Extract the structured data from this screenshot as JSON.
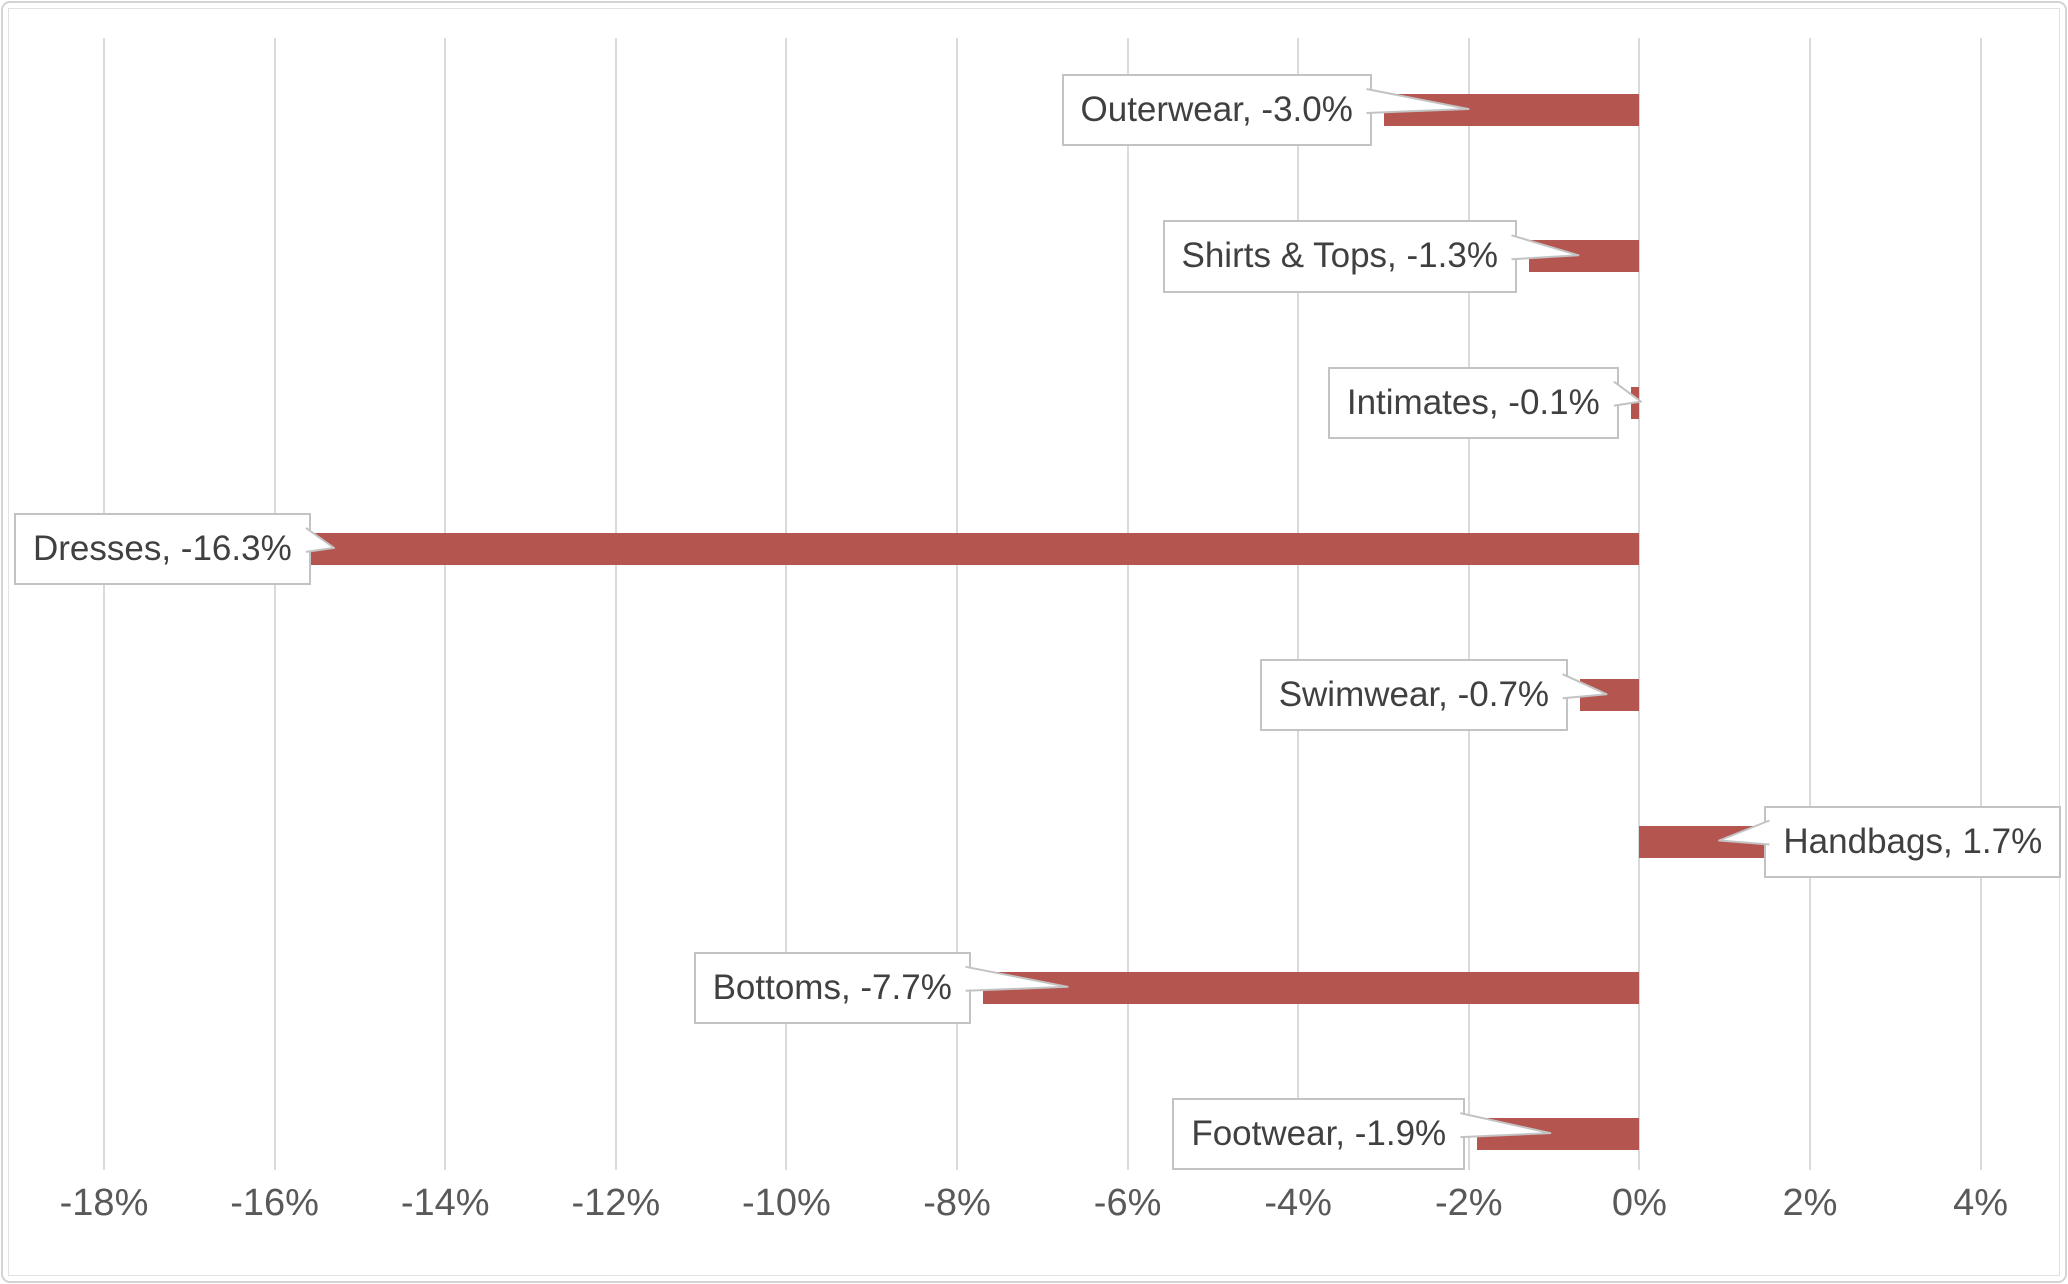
{
  "chart_data": {
    "type": "bar",
    "orientation": "horizontal",
    "title": "",
    "categories": [
      "Outerwear",
      "Shirts & Tops",
      "Intimates",
      "Dresses",
      "Swimwear",
      "Handbags",
      "Bottoms",
      "Footwear"
    ],
    "values": [
      -3.0,
      -1.3,
      -0.1,
      -16.3,
      -0.7,
      1.7,
      -7.7,
      -1.9
    ],
    "value_unit": "%",
    "data_labels": [
      "Outerwear, -3.0%",
      "Shirts & Tops, -1.3%",
      "Intimates, -0.1%",
      "Dresses, -16.3%",
      "Swimwear, -0.7%",
      "Handbags, 1.7%",
      "Bottoms, -7.7%",
      "Footwear, -1.9%"
    ],
    "x_ticks": [
      "-18%",
      "-16%",
      "-14%",
      "-12%",
      "-10%",
      "-8%",
      "-6%",
      "-4%",
      "-2%",
      "0%",
      "2%",
      "4%"
    ],
    "x_tick_values": [
      -18,
      -16,
      -14,
      -12,
      -10,
      -8,
      -6,
      -4,
      -2,
      0,
      2,
      4
    ],
    "xlim": [
      -18.8,
      5.0
    ],
    "grid": true,
    "legend": "none",
    "bar_color": "#b55550",
    "gridline_color": "#dadada",
    "tick_label_color": "#595959",
    "callout_text_color": "#404040",
    "callout_border_color": "#c3c3c3",
    "callout_fill_color": "#ffffff",
    "background_color": "#ffffff"
  }
}
